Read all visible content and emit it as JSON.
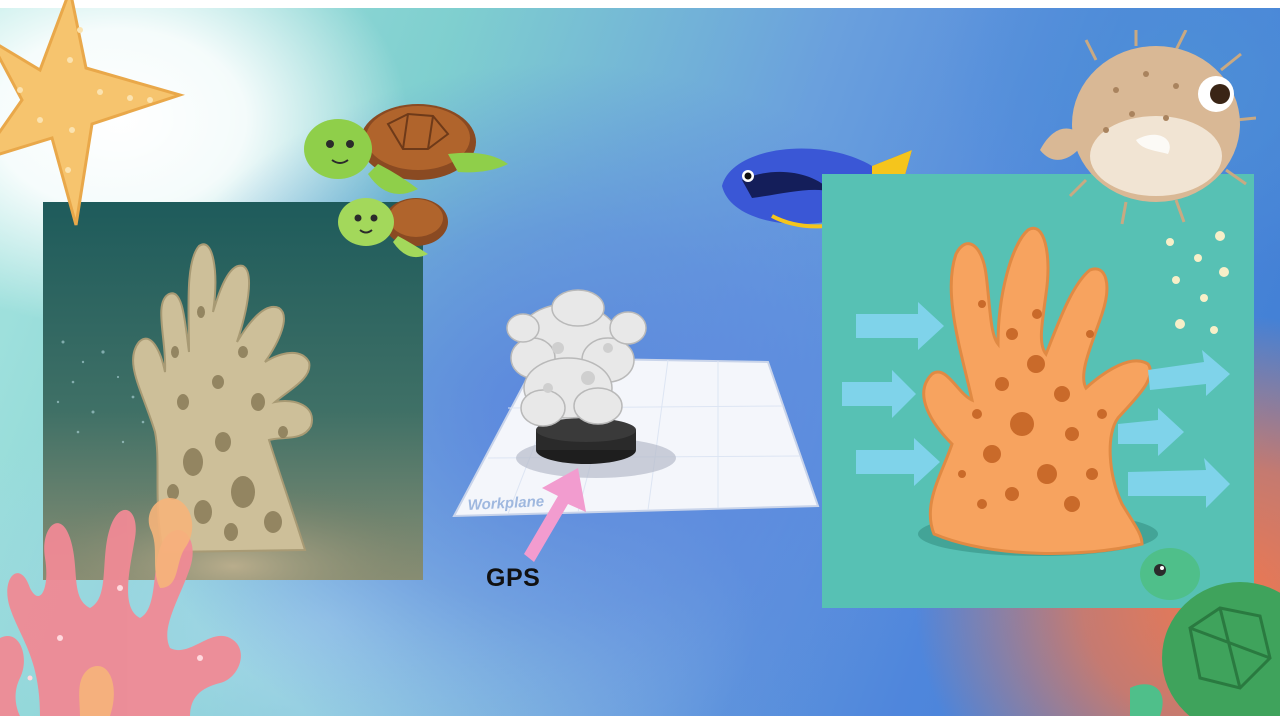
{
  "slide": {
    "gps_label": "GPS",
    "workplane_label": "Workplane"
  },
  "colors": {
    "turquoise": "#7fcfcf",
    "blue": "#4f86dc",
    "coral_orange": "#f0784f",
    "teal_panel": "#57c1b4",
    "arrow_pink": "#f29ccf",
    "sponge_orange": "#f7a35f",
    "arrow_blue": "#7fd3ea"
  },
  "icons": [
    "starfish-icon",
    "turtles-icon",
    "blue-tang-fish-icon",
    "pufferfish-icon",
    "sea-turtle-icon",
    "pink-coral-icon",
    "water-flow-arrow-icon"
  ]
}
